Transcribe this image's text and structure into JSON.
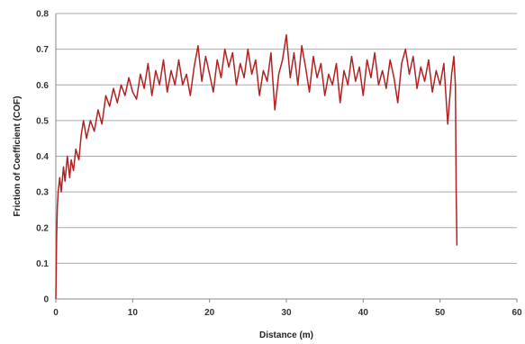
{
  "chart_data": {
    "type": "line",
    "title": "",
    "xlabel": "Distance (m)",
    "ylabel": "Friction of Coefficient (COF)",
    "xlim": [
      0,
      60
    ],
    "ylim": [
      0,
      0.8
    ],
    "xticks": [
      "0",
      "10",
      "20",
      "30",
      "40",
      "50",
      "60"
    ],
    "yticks": [
      "0",
      "0.1",
      "0.2",
      "0.3",
      "0.4",
      "0.5",
      "0.6",
      "0.7",
      "0.8"
    ],
    "grid": "horizontal",
    "legend": "none",
    "colors": {
      "line": "#b22222",
      "grid": "#aaaaaa",
      "axis": "#888888"
    },
    "series": [
      {
        "x": [
          0.0,
          0.1,
          0.2,
          0.3,
          0.5,
          0.7,
          1.0,
          1.2,
          1.5,
          1.8,
          2.0,
          2.3,
          2.6,
          3.0,
          3.3,
          3.6,
          4.0,
          4.5,
          5.0,
          5.5,
          6.0,
          6.5,
          7.0,
          7.5,
          8.0,
          8.5,
          9.0,
          9.5,
          10.0,
          10.5,
          11.0,
          11.5,
          12.0,
          12.5,
          13.0,
          13.5,
          14.0,
          14.5,
          15.0,
          15.5,
          16.0,
          16.5,
          17.0,
          17.5,
          18.0,
          18.5,
          19.0,
          19.5,
          20.0,
          20.5,
          21.0,
          21.5,
          22.0,
          22.5,
          23.0,
          23.5,
          24.0,
          24.5,
          25.0,
          25.5,
          26.0,
          26.5,
          27.0,
          27.5,
          28.0,
          28.5,
          29.0,
          29.5,
          30.0,
          30.5,
          31.0,
          31.5,
          32.0,
          32.5,
          33.0,
          33.5,
          34.0,
          34.5,
          35.0,
          35.5,
          36.0,
          36.5,
          37.0,
          37.5,
          38.0,
          38.5,
          39.0,
          39.5,
          40.0,
          40.5,
          41.0,
          41.5,
          42.0,
          42.5,
          43.0,
          43.5,
          44.0,
          44.5,
          45.0,
          45.5,
          46.0,
          46.5,
          47.0,
          47.5,
          48.0,
          48.5,
          49.0,
          49.5,
          50.0,
          50.5,
          51.0,
          51.5,
          51.8,
          52.0,
          52.1,
          52.2
        ],
        "y": [
          0.0,
          0.18,
          0.26,
          0.3,
          0.34,
          0.3,
          0.37,
          0.33,
          0.4,
          0.34,
          0.39,
          0.36,
          0.42,
          0.39,
          0.46,
          0.5,
          0.45,
          0.5,
          0.47,
          0.53,
          0.49,
          0.57,
          0.54,
          0.59,
          0.55,
          0.6,
          0.57,
          0.62,
          0.58,
          0.56,
          0.63,
          0.59,
          0.66,
          0.57,
          0.64,
          0.6,
          0.67,
          0.58,
          0.64,
          0.6,
          0.67,
          0.6,
          0.63,
          0.57,
          0.65,
          0.71,
          0.61,
          0.68,
          0.63,
          0.58,
          0.67,
          0.62,
          0.7,
          0.65,
          0.69,
          0.6,
          0.66,
          0.62,
          0.7,
          0.63,
          0.67,
          0.57,
          0.64,
          0.61,
          0.69,
          0.53,
          0.63,
          0.67,
          0.74,
          0.62,
          0.69,
          0.6,
          0.71,
          0.65,
          0.58,
          0.68,
          0.62,
          0.66,
          0.57,
          0.63,
          0.6,
          0.66,
          0.55,
          0.64,
          0.6,
          0.68,
          0.61,
          0.65,
          0.57,
          0.67,
          0.62,
          0.69,
          0.6,
          0.64,
          0.59,
          0.67,
          0.62,
          0.55,
          0.66,
          0.7,
          0.63,
          0.68,
          0.59,
          0.65,
          0.61,
          0.67,
          0.58,
          0.64,
          0.6,
          0.66,
          0.49,
          0.63,
          0.68,
          0.6,
          0.3,
          0.15
        ]
      }
    ]
  }
}
